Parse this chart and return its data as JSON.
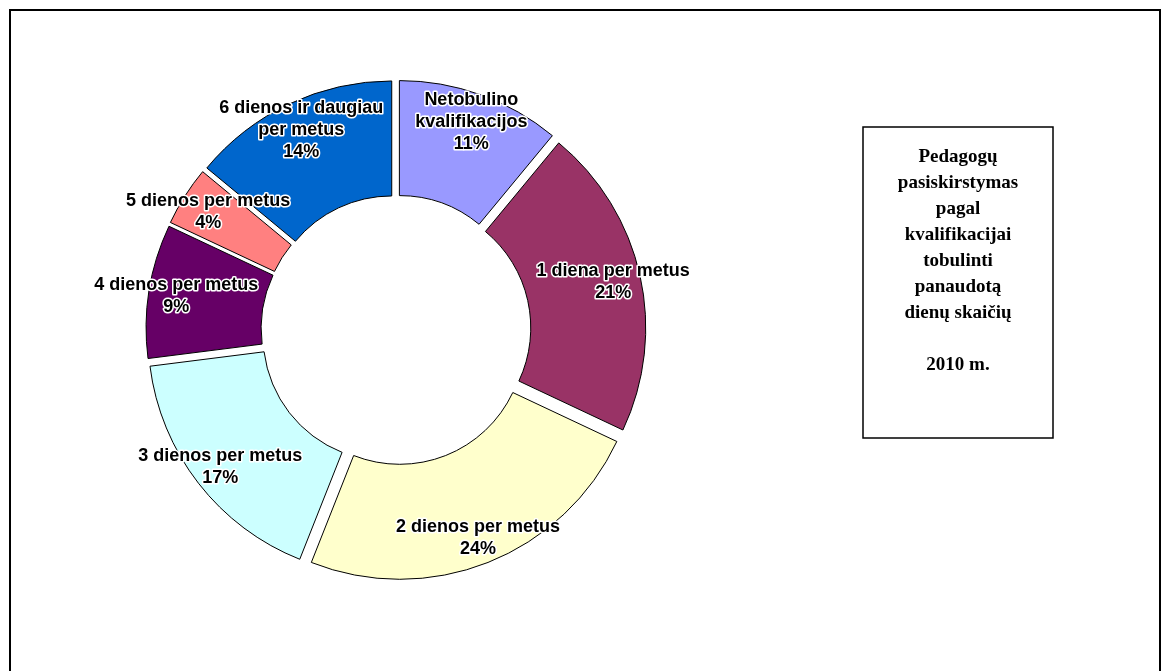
{
  "chart_data": {
    "type": "donut",
    "title": "Pedagogų pasiskirstymas pagal kvalifikacijai tobulinti panaudotą dienų skaičių",
    "subtitle": "2010 m.",
    "categories": [
      "Netobulino kvalifikacijos",
      "1 diena per metus",
      "2 dienos per metus",
      "3 dienos per metus",
      "4 dienos per metus",
      "5 dienos per metus",
      "6 dienos ir daugiau per metus"
    ],
    "values": [
      11,
      21,
      24,
      17,
      9,
      4,
      14
    ],
    "value_labels": [
      "11%",
      "21%",
      "24%",
      "17%",
      "9%",
      "4%",
      "14%"
    ],
    "colors": [
      "#9999ff",
      "#993366",
      "#ffffcc",
      "#ccffff",
      "#660066",
      "#ff8080",
      "#0066cc"
    ]
  }
}
